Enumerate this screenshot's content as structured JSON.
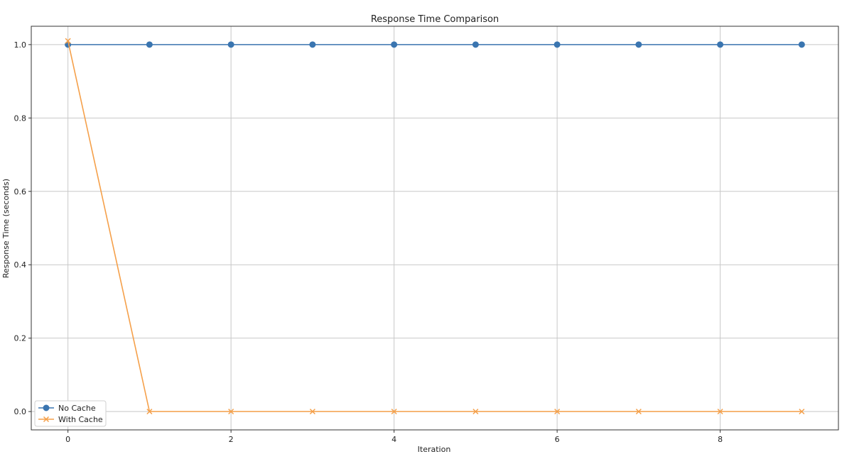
{
  "chart_data": {
    "type": "line",
    "title": "Response Time Comparison",
    "xlabel": "Iteration",
    "ylabel": "Response Time (seconds)",
    "xlim": [
      -0.45,
      9.45
    ],
    "ylim": [
      -0.05,
      1.05
    ],
    "x": [
      0,
      1,
      2,
      3,
      4,
      5,
      6,
      7,
      8,
      9
    ],
    "xticks": [
      0,
      2,
      4,
      6,
      8
    ],
    "yticks": [
      0.0,
      0.2,
      0.4,
      0.6,
      0.8,
      1.0
    ],
    "ytick_labels": [
      "0.0",
      "0.2",
      "0.4",
      "0.6",
      "0.8",
      "1.0"
    ],
    "xtick_labels": [
      "0",
      "2",
      "4",
      "6",
      "8"
    ],
    "grid": true,
    "legend_position": "lower-left",
    "series": [
      {
        "name": "No Cache",
        "values": [
          1.0,
          1.0,
          1.0,
          1.0,
          1.0,
          1.0,
          1.0,
          1.0,
          1.0,
          1.0
        ],
        "color": "#3a75b0",
        "marker": "circle"
      },
      {
        "name": "With Cache",
        "values": [
          1.01,
          0.0,
          0.0,
          0.0,
          0.0,
          0.0,
          0.0,
          0.0,
          0.0,
          0.0
        ],
        "color": "#f5a04a",
        "marker": "x"
      }
    ]
  }
}
